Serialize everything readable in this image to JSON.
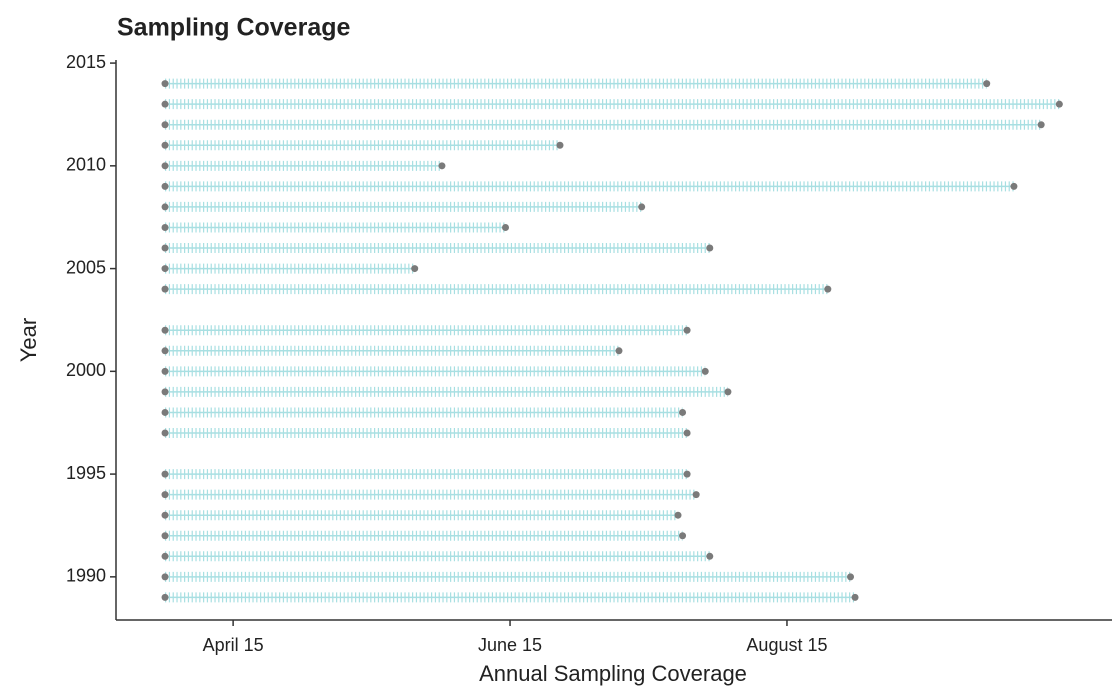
{
  "chart_data": {
    "type": "dumbbell",
    "title": "Sampling Coverage",
    "x_label": "Annual Sampling Coverage",
    "y_label": "Year",
    "y": [
      2014,
      2013,
      2012,
      2011,
      2010,
      2009,
      2008,
      2007,
      2006,
      2005,
      2004,
      2002,
      2001,
      2000,
      1999,
      1998,
      1997,
      1995,
      1994,
      1993,
      1992,
      1991,
      1990,
      1989
    ],
    "start": [
      90,
      90,
      90,
      90,
      90,
      90,
      90,
      90,
      90,
      90,
      90,
      90,
      90,
      90,
      90,
      90,
      90,
      90,
      90,
      90,
      90,
      90,
      90,
      90
    ],
    "end": [
      271,
      287,
      283,
      177,
      151,
      277,
      195,
      165,
      210,
      145,
      236,
      205,
      190,
      209,
      214,
      204,
      205,
      205,
      207,
      203,
      204,
      210,
      241,
      242
    ],
    "xlim": [
      79.2,
      298.6
    ],
    "xticks": [
      {
        "value": 105,
        "label": "April 15"
      },
      {
        "value": 166,
        "label": "June 15"
      },
      {
        "value": 227,
        "label": "August 15"
      }
    ],
    "ylim": [
      1987.9,
      2015.15
    ],
    "yticks": [
      1990,
      1995,
      2000,
      2005,
      2010,
      2015
    ],
    "line_color": "#a8dfe2",
    "point_color": "#7a7a7a"
  }
}
